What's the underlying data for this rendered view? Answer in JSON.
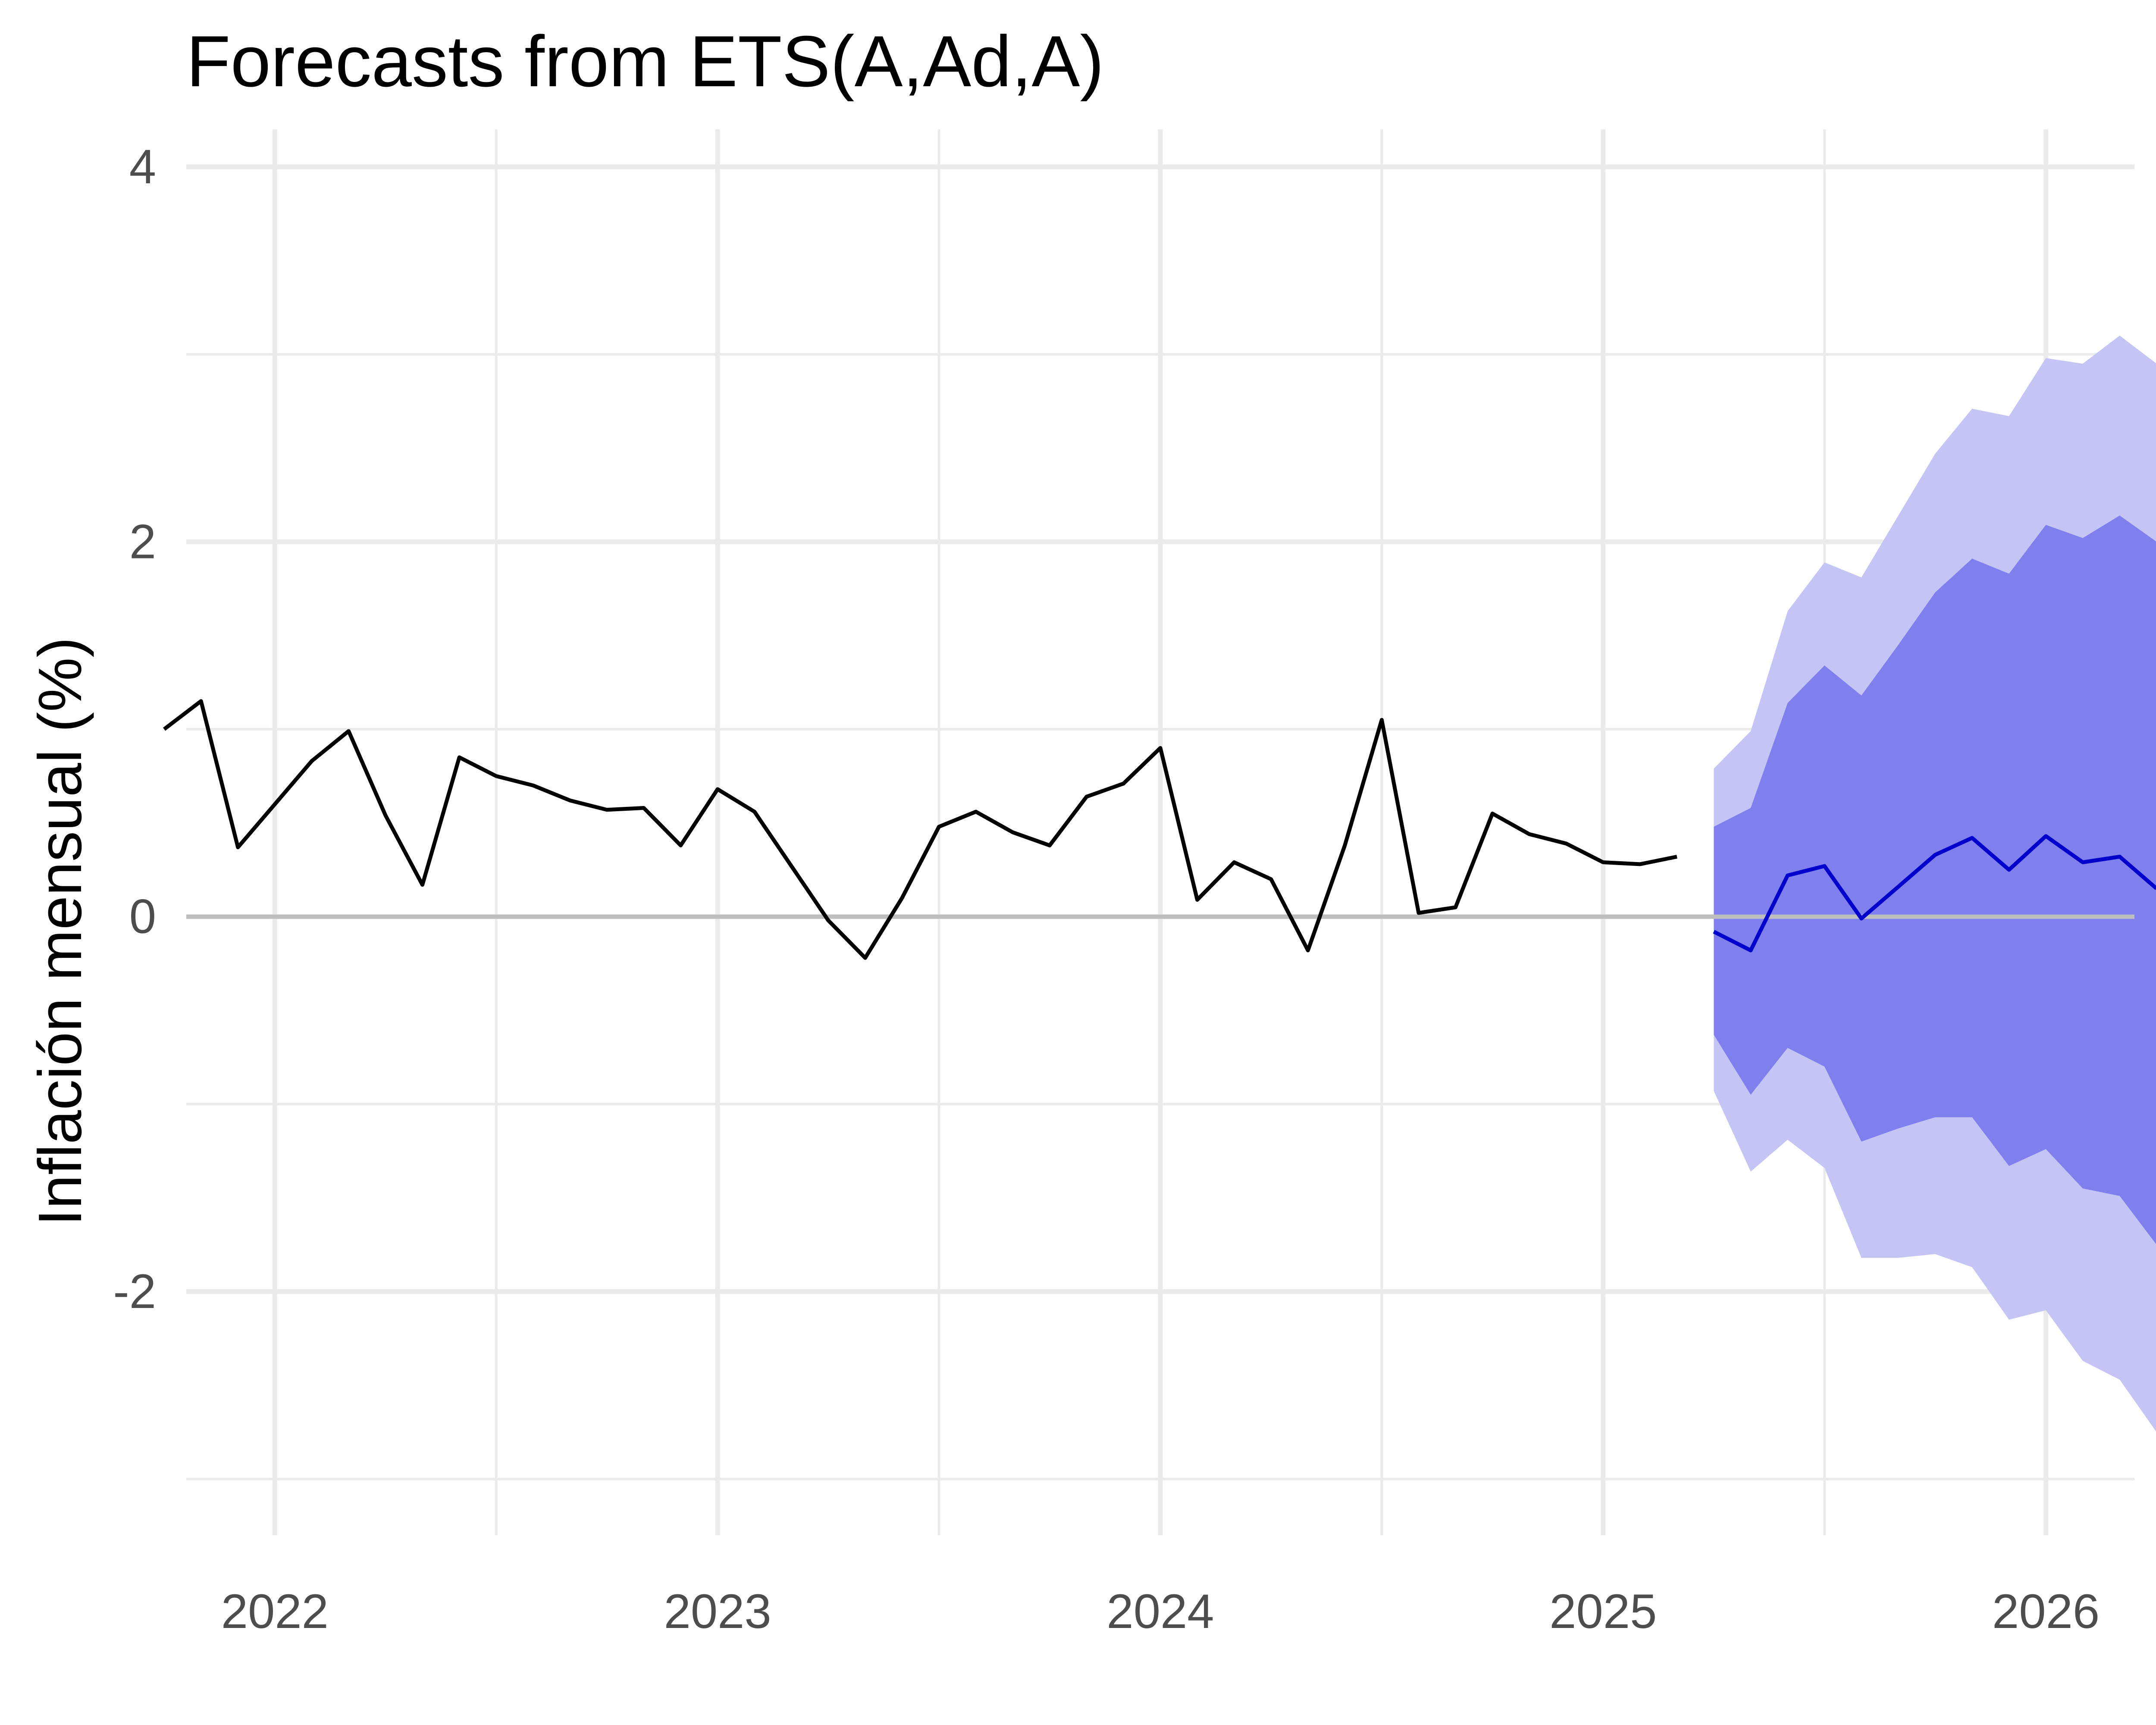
{
  "chart_data": {
    "type": "line",
    "title": "Forecasts from ETS(A,Ad,A)",
    "xlabel": "",
    "ylabel": "Inflación mensual (%)",
    "xlim": [
      2021.8,
      2026.2
    ],
    "ylim": [
      -3.3,
      4.2
    ],
    "x_ticks": [
      2022,
      2023,
      2024,
      2025,
      2026
    ],
    "x_tick_labels": [
      "2022",
      "2023",
      "2024",
      "2025",
      "2026"
    ],
    "y_ticks": [
      -2,
      0,
      2,
      4
    ],
    "y_tick_labels": [
      "-2",
      "0",
      "2",
      "4"
    ],
    "grid": true,
    "hline": 0,
    "colors": {
      "observed": "#000000",
      "forecast": "#0000cc",
      "band80": "#7f7fee",
      "band95": "#c5c5f5",
      "grid": "#ebebeb",
      "zero_line": "#bebebe"
    },
    "series": [
      {
        "role": "observed",
        "x": [
          "2021-10",
          "2021-11",
          "2021-12",
          "2022-01",
          "2022-02",
          "2022-03",
          "2022-04",
          "2022-05",
          "2022-06",
          "2022-07",
          "2022-08",
          "2022-09",
          "2022-10",
          "2022-11",
          "2022-12",
          "2023-01",
          "2023-02",
          "2023-03",
          "2023-04",
          "2023-05",
          "2023-06",
          "2023-07",
          "2023-08",
          "2023-09",
          "2023-10",
          "2023-11",
          "2023-12",
          "2024-01",
          "2024-02",
          "2024-03",
          "2024-04",
          "2024-05",
          "2024-06",
          "2024-07",
          "2024-08",
          "2024-09",
          "2024-10",
          "2024-11",
          "2024-12",
          "2025-01",
          "2025-02",
          "2025-03"
        ],
        "values": [
          1.0,
          1.15,
          0.37,
          0.6,
          0.83,
          0.99,
          0.54,
          0.17,
          0.85,
          0.75,
          0.7,
          0.62,
          0.57,
          0.58,
          0.38,
          0.68,
          0.56,
          0.27,
          -0.02,
          -0.22,
          0.1,
          0.48,
          0.56,
          0.45,
          0.38,
          0.64,
          0.71,
          0.9,
          0.09,
          0.29,
          0.2,
          -0.18,
          0.38,
          1.05,
          0.02,
          0.05,
          0.55,
          0.44,
          0.39,
          0.29,
          0.28,
          0.32
        ]
      },
      {
        "role": "forecast",
        "x": [
          "2025-04",
          "2025-05",
          "2025-06",
          "2025-07",
          "2025-08",
          "2025-09",
          "2025-10",
          "2025-11",
          "2025-12",
          "2026-01",
          "2026-02",
          "2026-03",
          "2026-04"
        ],
        "values": [
          -0.08,
          -0.18,
          0.22,
          0.27,
          -0.01,
          0.16,
          0.33,
          0.42,
          0.25,
          0.43,
          0.29,
          0.32,
          0.15
        ],
        "lo80": [
          -0.63,
          -0.95,
          -0.7,
          -0.8,
          -1.2,
          -1.13,
          -1.07,
          -1.07,
          -1.33,
          -1.24,
          -1.45,
          -1.49,
          -1.75
        ],
        "hi80": [
          0.48,
          0.58,
          1.14,
          1.34,
          1.18,
          1.45,
          1.73,
          1.91,
          1.83,
          2.09,
          2.02,
          2.14,
          2.0
        ],
        "lo95": [
          -0.93,
          -1.36,
          -1.19,
          -1.34,
          -1.82,
          -1.82,
          -1.8,
          -1.87,
          -2.15,
          -2.1,
          -2.37,
          -2.47,
          -2.75
        ],
        "hi95": [
          0.79,
          0.99,
          1.63,
          1.89,
          1.81,
          2.14,
          2.47,
          2.71,
          2.67,
          2.98,
          2.95,
          3.1,
          2.95
        ]
      }
    ]
  }
}
